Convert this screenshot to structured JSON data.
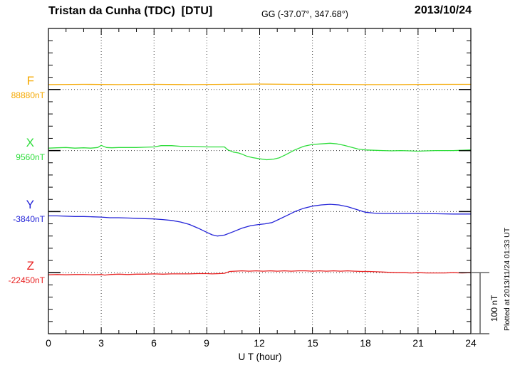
{
  "header": {
    "title": "Tristan da Cunha (TDC)  [DTU]",
    "coordinates": "GG (-37.07°, 347.68°)",
    "date": "2013/10/24"
  },
  "x_axis": {
    "label": "U T (hour)",
    "tick_labels": [
      "0",
      "3",
      "6",
      "9",
      "12",
      "15",
      "18",
      "21",
      "24"
    ]
  },
  "scale_bar": {
    "label": "100 nT",
    "span_nT": 100
  },
  "plot_note": "Plotted at 2013/11/24 01:33 UT",
  "chart_data": {
    "type": "line",
    "title": "Magnetogram Tristan da Cunha (TDC) [DTU] 2013/10/24",
    "xlabel": "U T (hour)",
    "x_range": [
      0,
      24
    ],
    "x_major_tick_step": 3,
    "x_minor_tick_step": 1,
    "grid": "dotted, vertical every 3 h, dotted horizontal baseline per component",
    "nT_per_division": 100,
    "legend_position": "left baseline labels",
    "series": [
      {
        "name": "F",
        "base_label": "88880nT",
        "base_nT": 88880,
        "color": "#f5a800",
        "points": [
          [
            0,
            88888
          ],
          [
            2,
            88888.5
          ],
          [
            4,
            88888
          ],
          [
            6,
            88888.5
          ],
          [
            8,
            88888
          ],
          [
            10,
            88888.5
          ],
          [
            12,
            88889
          ],
          [
            14,
            88888.5
          ],
          [
            16,
            88888.5
          ],
          [
            18,
            88888
          ],
          [
            20,
            88888
          ],
          [
            22,
            88888.5
          ],
          [
            24,
            88888.5
          ]
        ]
      },
      {
        "name": "X",
        "base_label": "9560nT",
        "base_nT": 9560,
        "color": "#2fdd3c",
        "points": [
          [
            0,
            9564
          ],
          [
            0.5,
            9564.5
          ],
          [
            1,
            9565
          ],
          [
            1.5,
            9564
          ],
          [
            2,
            9564.5
          ],
          [
            2.4,
            9564
          ],
          [
            2.8,
            9565
          ],
          [
            3,
            9568.5
          ],
          [
            3.3,
            9565
          ],
          [
            3.6,
            9564.5
          ],
          [
            4,
            9565
          ],
          [
            4.5,
            9565
          ],
          [
            5,
            9565
          ],
          [
            5.5,
            9565.5
          ],
          [
            6,
            9566
          ],
          [
            6.4,
            9568
          ],
          [
            7,
            9568
          ],
          [
            7.5,
            9567
          ],
          [
            8,
            9567
          ],
          [
            8.5,
            9566.5
          ],
          [
            9,
            9566
          ],
          [
            9.5,
            9566
          ],
          [
            10,
            9566
          ],
          [
            10.2,
            9561
          ],
          [
            10.5,
            9557.5
          ],
          [
            10.8,
            9556
          ],
          [
            11,
            9554
          ],
          [
            11.3,
            9550.5
          ],
          [
            11.6,
            9548.5
          ],
          [
            12,
            9546.5
          ],
          [
            12.4,
            9545
          ],
          [
            12.8,
            9546
          ],
          [
            13.1,
            9548
          ],
          [
            13.5,
            9553.5
          ],
          [
            14,
            9561
          ],
          [
            14.5,
            9567
          ],
          [
            15,
            9570
          ],
          [
            15.5,
            9571
          ],
          [
            16,
            9572
          ],
          [
            16.4,
            9571
          ],
          [
            16.8,
            9568.5
          ],
          [
            17.2,
            9565.5
          ],
          [
            17.6,
            9562.5
          ],
          [
            18,
            9561
          ],
          [
            18.5,
            9560.5
          ],
          [
            19,
            9560
          ],
          [
            19.5,
            9559.5
          ],
          [
            20,
            9560
          ],
          [
            20.5,
            9559.5
          ],
          [
            21,
            9559
          ],
          [
            21.5,
            9559.5
          ],
          [
            22,
            9560
          ],
          [
            22.5,
            9560
          ],
          [
            23,
            9560
          ],
          [
            23.5,
            9560.5
          ],
          [
            24,
            9561
          ]
        ]
      },
      {
        "name": "Y",
        "base_label": "-3840nT",
        "base_nT": -3840,
        "color": "#2424d8",
        "points": [
          [
            0,
            -3847
          ],
          [
            0.5,
            -3847
          ],
          [
            1,
            -3847.5
          ],
          [
            1.5,
            -3848
          ],
          [
            2,
            -3848
          ],
          [
            2.5,
            -3848.5
          ],
          [
            3,
            -3849
          ],
          [
            3.5,
            -3850
          ],
          [
            4,
            -3850
          ],
          [
            4.5,
            -3850.5
          ],
          [
            5,
            -3851
          ],
          [
            5.5,
            -3851.5
          ],
          [
            6,
            -3852
          ],
          [
            6.5,
            -3853
          ],
          [
            7,
            -3854.5
          ],
          [
            7.5,
            -3857
          ],
          [
            8,
            -3861
          ],
          [
            8.5,
            -3867
          ],
          [
            9,
            -3874
          ],
          [
            9.3,
            -3878
          ],
          [
            9.6,
            -3880
          ],
          [
            10,
            -3878.5
          ],
          [
            10.5,
            -3873
          ],
          [
            11,
            -3867
          ],
          [
            11.5,
            -3863
          ],
          [
            12,
            -3861
          ],
          [
            12.3,
            -3860
          ],
          [
            12.7,
            -3858
          ],
          [
            13,
            -3854
          ],
          [
            13.5,
            -3847
          ],
          [
            14,
            -3840
          ],
          [
            14.5,
            -3834.5
          ],
          [
            15,
            -3831
          ],
          [
            15.5,
            -3829
          ],
          [
            16,
            -3828
          ],
          [
            16.5,
            -3829
          ],
          [
            17,
            -3832
          ],
          [
            17.5,
            -3836.5
          ],
          [
            18,
            -3841
          ],
          [
            18.5,
            -3842.5
          ],
          [
            19,
            -3843
          ],
          [
            19.5,
            -3843
          ],
          [
            20,
            -3843
          ],
          [
            20.5,
            -3843
          ],
          [
            21,
            -3843
          ],
          [
            21.5,
            -3843.5
          ],
          [
            22,
            -3843.5
          ],
          [
            23,
            -3844
          ],
          [
            24,
            -3844
          ]
        ]
      },
      {
        "name": "Z",
        "base_label": "-22450nT",
        "base_nT": -22450,
        "color": "#e82222",
        "points": [
          [
            0,
            -22453.5
          ],
          [
            0.5,
            -22453
          ],
          [
            1,
            -22453.5
          ],
          [
            1.5,
            -22453
          ],
          [
            2,
            -22453
          ],
          [
            2.5,
            -22453.5
          ],
          [
            3,
            -22453
          ],
          [
            3.2,
            -22454
          ],
          [
            3.5,
            -22453
          ],
          [
            4,
            -22452.5
          ],
          [
            4.5,
            -22453
          ],
          [
            5,
            -22452.5
          ],
          [
            5.5,
            -22452.5
          ],
          [
            6,
            -22452
          ],
          [
            6.5,
            -22452.5
          ],
          [
            7,
            -22452
          ],
          [
            7.5,
            -22452
          ],
          [
            8,
            -22452
          ],
          [
            8.5,
            -22451.5
          ],
          [
            9,
            -22451.5
          ],
          [
            9.3,
            -22452
          ],
          [
            9.7,
            -22451.5
          ],
          [
            10,
            -22451
          ],
          [
            10.3,
            -22448
          ],
          [
            10.6,
            -22447.5
          ],
          [
            11,
            -22447
          ],
          [
            11.4,
            -22447.5
          ],
          [
            11.8,
            -22447
          ],
          [
            12.2,
            -22447.5
          ],
          [
            12.6,
            -22447
          ],
          [
            13,
            -22447.5
          ],
          [
            13.4,
            -22447
          ],
          [
            13.8,
            -22447.5
          ],
          [
            14.2,
            -22447
          ],
          [
            14.6,
            -22447
          ],
          [
            15,
            -22447.5
          ],
          [
            15.4,
            -22447
          ],
          [
            15.8,
            -22447.5
          ],
          [
            16.2,
            -22447
          ],
          [
            16.6,
            -22447.5
          ],
          [
            17,
            -22447
          ],
          [
            17.4,
            -22447.5
          ],
          [
            17.8,
            -22448
          ],
          [
            18.2,
            -22448
          ],
          [
            18.6,
            -22448.5
          ],
          [
            19,
            -22449
          ],
          [
            19.4,
            -22449.5
          ],
          [
            19.8,
            -22450
          ],
          [
            20.2,
            -22450
          ],
          [
            20.6,
            -22450.5
          ],
          [
            21,
            -22450
          ],
          [
            21.5,
            -22450.5
          ],
          [
            22,
            -22450.5
          ],
          [
            22.5,
            -22450.5
          ],
          [
            23,
            -22450
          ],
          [
            23.5,
            -22450.5
          ],
          [
            24,
            -22450
          ]
        ]
      }
    ]
  }
}
